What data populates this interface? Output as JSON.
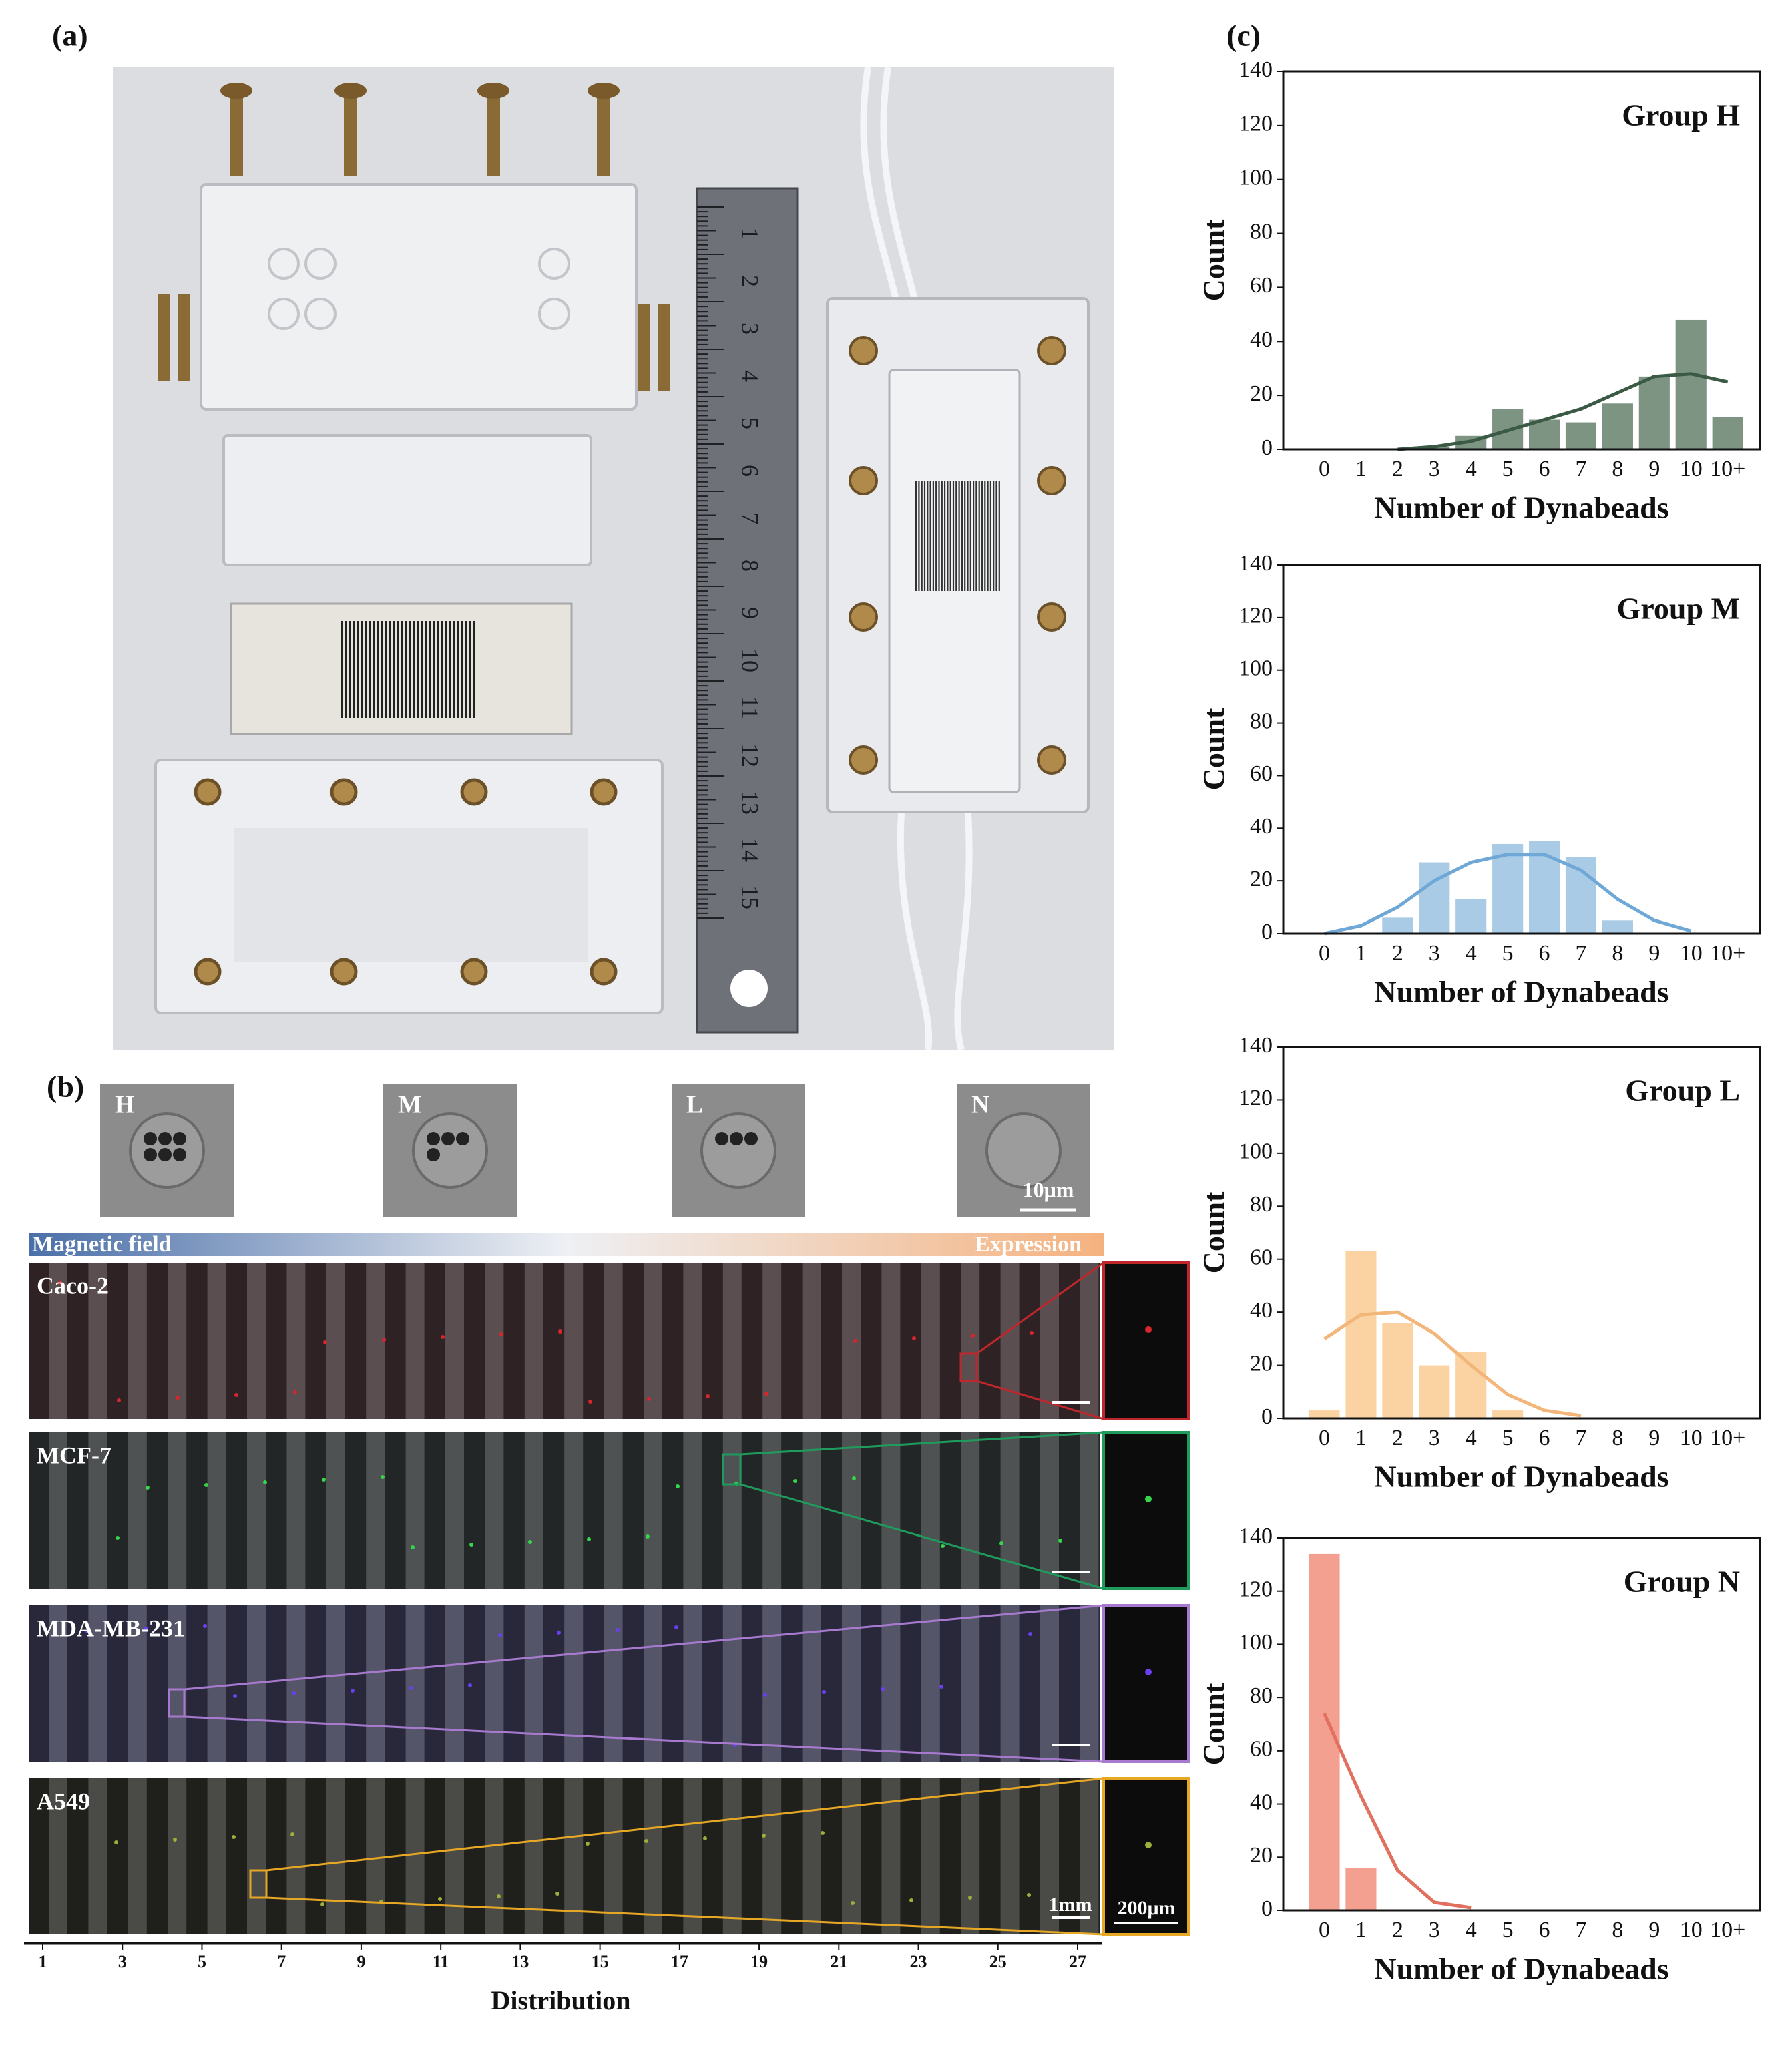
{
  "panel_a": {
    "label": "(a)",
    "ruler_labels": [
      1,
      2,
      3,
      4,
      5,
      6,
      7,
      8,
      9,
      10,
      11,
      12,
      13,
      14,
      15
    ]
  },
  "panel_b": {
    "label": "(b)",
    "cells": [
      "H",
      "M",
      "L",
      "N"
    ],
    "cell_scale": "10μm",
    "gradient_left": "Magnetic field",
    "gradient_right": "Expression",
    "rows": [
      "Caco-2",
      "MCF-7",
      "MDA-MB-231",
      "A549"
    ],
    "scale_main": "1mm",
    "scale_inset": "200μm",
    "distribution": {
      "xlabel": "Distribution",
      "xlim": [
        1,
        27
      ],
      "xticks": [
        1,
        3,
        5,
        7,
        9,
        11,
        13,
        15,
        17,
        19,
        21,
        23,
        25,
        27
      ]
    }
  },
  "panel_c": {
    "label": "(c)"
  },
  "chart_data": [
    {
      "type": "bar",
      "title": "Group H",
      "xlabel": "Number of Dynabeads",
      "ylabel": "Count",
      "categories": [
        "0",
        "1",
        "2",
        "3",
        "4",
        "5",
        "6",
        "7",
        "8",
        "9",
        "10",
        "10+"
      ],
      "values": [
        0,
        0,
        0,
        1,
        5,
        15,
        11,
        10,
        17,
        27,
        48,
        12
      ],
      "color": "#7d9483",
      "curve": [
        null,
        null,
        0,
        1,
        3,
        7,
        11,
        15,
        21,
        27,
        28,
        25
      ],
      "curve_color": "#3b5a45",
      "ylim": [
        0,
        140
      ],
      "yticks": [
        0,
        20,
        40,
        60,
        80,
        100,
        120,
        140
      ]
    },
    {
      "type": "bar",
      "title": "Group M",
      "xlabel": "Number of Dynabeads",
      "ylabel": "Count",
      "categories": [
        "0",
        "1",
        "2",
        "3",
        "4",
        "5",
        "6",
        "7",
        "8",
        "9",
        "10",
        "10+"
      ],
      "values": [
        0,
        0,
        6,
        27,
        13,
        34,
        35,
        29,
        5,
        0,
        0,
        0
      ],
      "color": "#a9cbe6",
      "curve": [
        0,
        3,
        10,
        20,
        27,
        30,
        30,
        24,
        13,
        5,
        1,
        null
      ],
      "curve_color": "#6fa8d6",
      "ylim": [
        0,
        140
      ],
      "yticks": [
        0,
        20,
        40,
        60,
        80,
        100,
        120,
        140
      ]
    },
    {
      "type": "bar",
      "title": "Group L",
      "xlabel": "Number of Dynabeads",
      "ylabel": "Count",
      "categories": [
        "0",
        "1",
        "2",
        "3",
        "4",
        "5",
        "6",
        "7",
        "8",
        "9",
        "10",
        "10+"
      ],
      "values": [
        3,
        63,
        36,
        20,
        25,
        3,
        0,
        0,
        0,
        0,
        0,
        0
      ],
      "color": "#fbd3a3",
      "curve": [
        30,
        39,
        40,
        32,
        20,
        9,
        3,
        1,
        null,
        null,
        null,
        null
      ],
      "curve_color": "#f3b67a",
      "ylim": [
        0,
        140
      ],
      "yticks": [
        0,
        20,
        40,
        60,
        80,
        100,
        120,
        140
      ]
    },
    {
      "type": "bar",
      "title": "Group N",
      "xlabel": "Number of Dynabeads",
      "ylabel": "Count",
      "categories": [
        "0",
        "1",
        "2",
        "3",
        "4",
        "5",
        "6",
        "7",
        "8",
        "9",
        "10",
        "10+"
      ],
      "values": [
        134,
        16,
        0,
        0,
        0,
        0,
        0,
        0,
        0,
        0,
        0,
        0
      ],
      "color": "#f3a091",
      "curve": [
        74,
        43,
        15,
        3,
        1,
        null,
        null,
        null,
        null,
        null,
        null,
        null
      ],
      "curve_color": "#e2705f",
      "ylim": [
        0,
        140
      ],
      "yticks": [
        0,
        20,
        40,
        60,
        80,
        100,
        120,
        140
      ]
    }
  ]
}
